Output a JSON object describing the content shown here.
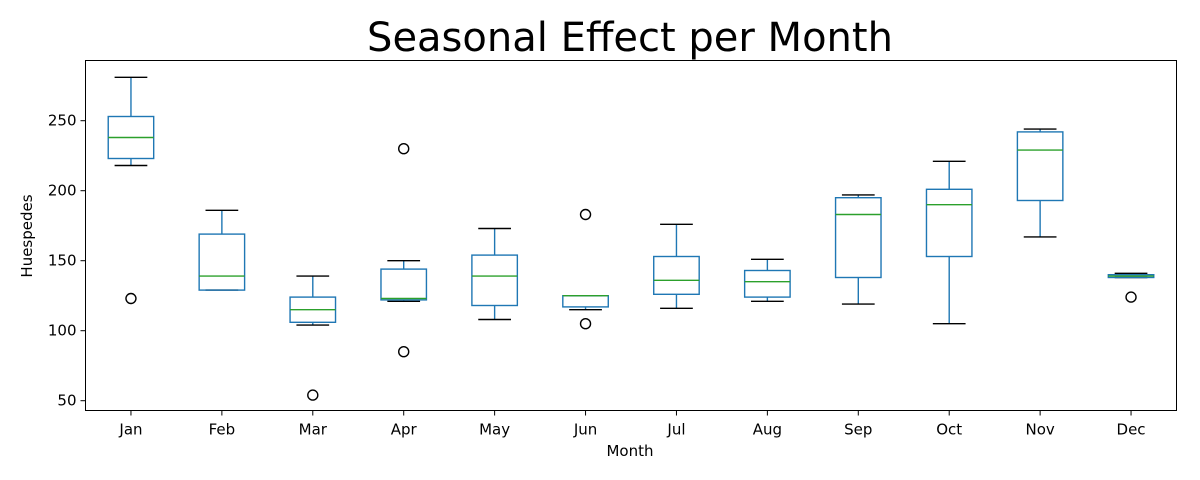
{
  "chart_data": {
    "type": "box",
    "title": "Seasonal Effect per Month",
    "xlabel": "Month",
    "ylabel": "Huespedes",
    "ylim": [
      43,
      293
    ],
    "yticks": [
      50,
      100,
      150,
      200,
      250
    ],
    "grid": false,
    "legend": null,
    "colors": {
      "box": "#1f77b4",
      "median": "#2ca02c",
      "cap": "#000000",
      "flier": "#000000"
    },
    "categories": [
      "Jan",
      "Feb",
      "Mar",
      "Apr",
      "May",
      "Jun",
      "Jul",
      "Aug",
      "Sep",
      "Oct",
      "Nov",
      "Dec"
    ],
    "boxes": [
      {
        "label": "Jan",
        "whislo": 218,
        "q1": 223,
        "med": 238,
        "q3": 253,
        "whishi": 281,
        "fliers": [
          123
        ]
      },
      {
        "label": "Feb",
        "whislo": 129,
        "q1": 129,
        "med": 139,
        "q3": 169,
        "whishi": 186,
        "fliers": []
      },
      {
        "label": "Mar",
        "whislo": 104,
        "q1": 106,
        "med": 115,
        "q3": 124,
        "whishi": 139,
        "fliers": [
          54
        ]
      },
      {
        "label": "Apr",
        "whislo": 121,
        "q1": 122,
        "med": 123,
        "q3": 144,
        "whishi": 150,
        "fliers": [
          85,
          230
        ]
      },
      {
        "label": "May",
        "whislo": 108,
        "q1": 118,
        "med": 139,
        "q3": 154,
        "whishi": 173,
        "fliers": []
      },
      {
        "label": "Jun",
        "whislo": 115,
        "q1": 117,
        "med": 125,
        "q3": 125,
        "whishi": 125,
        "fliers": [
          105,
          183
        ]
      },
      {
        "label": "Jul",
        "whislo": 116,
        "q1": 126,
        "med": 136,
        "q3": 153,
        "whishi": 176,
        "fliers": []
      },
      {
        "label": "Aug",
        "whislo": 121,
        "q1": 124,
        "med": 135,
        "q3": 143,
        "whishi": 151,
        "fliers": []
      },
      {
        "label": "Sep",
        "whislo": 119,
        "q1": 138,
        "med": 183,
        "q3": 195,
        "whishi": 197,
        "fliers": []
      },
      {
        "label": "Oct",
        "whislo": 105,
        "q1": 153,
        "med": 190,
        "q3": 201,
        "whishi": 221,
        "fliers": []
      },
      {
        "label": "Nov",
        "whislo": 167,
        "q1": 193,
        "med": 229,
        "q3": 242,
        "whishi": 244,
        "fliers": []
      },
      {
        "label": "Dec",
        "whislo": 138,
        "q1": 138,
        "med": 139,
        "q3": 140,
        "whishi": 141,
        "fliers": [
          124
        ]
      }
    ]
  }
}
